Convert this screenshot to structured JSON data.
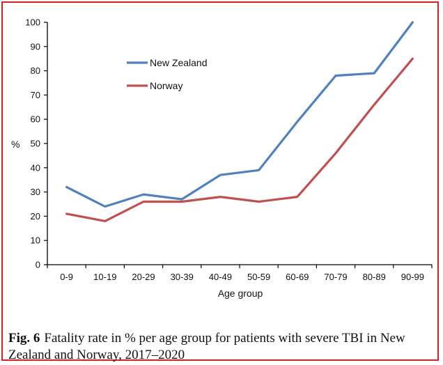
{
  "chart_data": {
    "type": "line",
    "categories": [
      "0-9",
      "10-19",
      "20-29",
      "30-39",
      "40-49",
      "50-59",
      "60-69",
      "70-79",
      "80-89",
      "90-99"
    ],
    "series": [
      {
        "name": "New Zealand",
        "color": "#4f81bd",
        "values": [
          32,
          24,
          29,
          27,
          37,
          39,
          59,
          78,
          79,
          100
        ]
      },
      {
        "name": "Norway",
        "color": "#c0504d",
        "values": [
          21,
          18,
          26,
          26,
          28,
          26,
          28,
          46,
          66,
          85
        ]
      }
    ],
    "title": "",
    "xlabel": "Age group",
    "ylabel": "%",
    "ylim": [
      0,
      100
    ],
    "yticks": [
      0,
      10,
      20,
      30,
      40,
      50,
      60,
      70,
      80,
      90,
      100
    ],
    "grid": false,
    "legend_position": "top-left"
  },
  "caption": {
    "label": "Fig. 6",
    "text": "Fatality rate in % per age group for patients with severe TBI in New Zealand and Norway, 2017–2020"
  }
}
